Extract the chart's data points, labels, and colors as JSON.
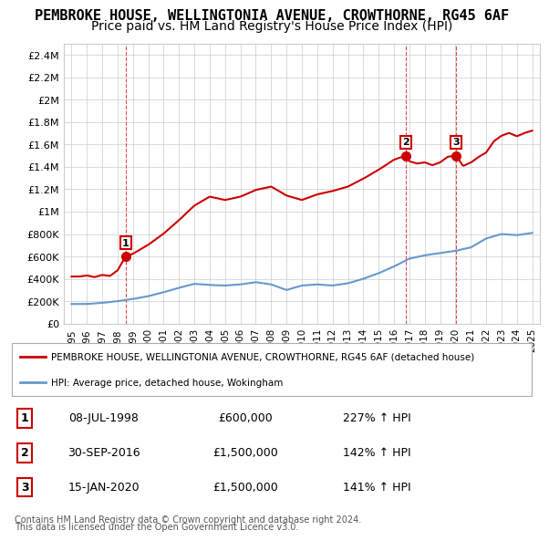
{
  "title": "PEMBROKE HOUSE, WELLINGTONIA AVENUE, CROWTHORNE, RG45 6AF",
  "subtitle": "Price paid vs. HM Land Registry's House Price Index (HPI)",
  "title_fontsize": 11,
  "subtitle_fontsize": 10,
  "background_color": "#ffffff",
  "plot_bg_color": "#ffffff",
  "grid_color": "#cccccc",
  "red_line_color": "#cc0000",
  "blue_line_color": "#6699cc",
  "sale_marker_color": "#cc0000",
  "sale_points": [
    {
      "year": 1998.52,
      "price": 600000,
      "label": "1"
    },
    {
      "year": 2016.75,
      "price": 1500000,
      "label": "2"
    },
    {
      "year": 2020.04,
      "price": 1500000,
      "label": "3"
    }
  ],
  "legend_entries": [
    "PEMBROKE HOUSE, WELLINGTONIA AVENUE, CROWTHORNE, RG45 6AF (detached house)",
    "HPI: Average price, detached house, Wokingham"
  ],
  "table_rows": [
    {
      "num": "1",
      "date": "08-JUL-1998",
      "price": "£600,000",
      "change": "227% ↑ HPI"
    },
    {
      "num": "2",
      "date": "30-SEP-2016",
      "price": "£1,500,000",
      "change": "142% ↑ HPI"
    },
    {
      "num": "3",
      "date": "15-JAN-2020",
      "price": "£1,500,000",
      "change": "141% ↑ HPI"
    }
  ],
  "footnote1": "Contains HM Land Registry data © Crown copyright and database right 2024.",
  "footnote2": "This data is licensed under the Open Government Licence v3.0.",
  "ylim": [
    0,
    2500000
  ],
  "xlim_start": 1994.5,
  "xlim_end": 2025.5,
  "yticks": [
    0,
    200000,
    400000,
    600000,
    800000,
    1000000,
    1200000,
    1400000,
    1600000,
    1800000,
    2000000,
    2200000,
    2400000
  ],
  "ytick_labels": [
    "£0",
    "£200K",
    "£400K",
    "£600K",
    "£800K",
    "£1M",
    "£1.2M",
    "£1.4M",
    "£1.6M",
    "£1.8M",
    "£2M",
    "£2.2M",
    "£2.4M"
  ],
  "xticks": [
    1995,
    1996,
    1997,
    1998,
    1999,
    2000,
    2001,
    2002,
    2003,
    2004,
    2005,
    2006,
    2007,
    2008,
    2009,
    2010,
    2011,
    2012,
    2013,
    2014,
    2015,
    2016,
    2017,
    2018,
    2019,
    2020,
    2021,
    2022,
    2023,
    2024,
    2025
  ]
}
